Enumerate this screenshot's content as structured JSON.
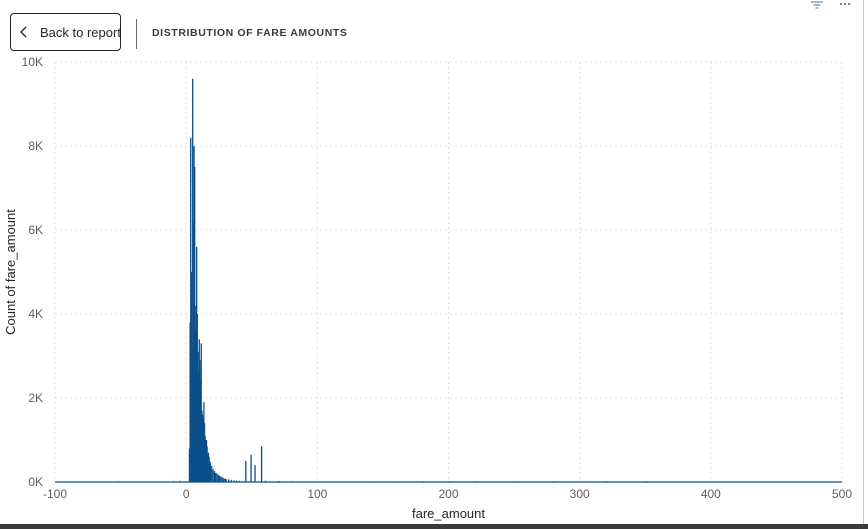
{
  "header": {
    "back_label": "Back to report",
    "title": "DISTRIBUTION OF FARE AMOUNTS"
  },
  "icons": {
    "back": "chevron-left-icon",
    "filter": "filter-icon",
    "more": "more-options-icon"
  },
  "colors": {
    "bar": "#0b4f8a",
    "grid": "#e1e1e1"
  },
  "chart_data": {
    "type": "bar",
    "title": "DISTRIBUTION OF FARE AMOUNTS",
    "xlabel": "fare_amount",
    "ylabel": "Count of fare_amount",
    "xlim": [
      -100,
      500
    ],
    "ylim": [
      0,
      10000
    ],
    "x_ticks": [
      "-100",
      "0",
      "100",
      "200",
      "300",
      "400",
      "500"
    ],
    "y_ticks": [
      "0K",
      "2K",
      "4K",
      "6K",
      "8K",
      "10K"
    ],
    "grid": true,
    "legend": "none",
    "x": [
      -52,
      -30,
      -10,
      -5,
      2,
      2.5,
      3,
      3.5,
      4,
      4.5,
      5,
      5.5,
      6,
      6.5,
      7,
      7.5,
      8,
      8.5,
      9,
      9.5,
      10,
      10.5,
      11,
      11.5,
      12,
      12.5,
      13,
      13.5,
      14,
      14.5,
      15,
      15.5,
      16,
      16.5,
      17,
      17.5,
      18,
      19,
      20,
      21,
      22,
      23,
      24,
      25,
      26,
      27,
      28,
      29,
      30,
      32,
      34,
      36,
      38,
      40,
      45,
      49,
      52,
      57,
      60,
      70,
      80,
      90,
      100,
      120,
      140,
      160,
      180,
      200,
      220,
      250,
      280,
      320,
      350
    ],
    "y": [
      20,
      15,
      20,
      30,
      800,
      3800,
      8200,
      5000,
      3200,
      9600,
      6200,
      8000,
      7500,
      3600,
      4200,
      5600,
      4000,
      3100,
      2600,
      3400,
      2900,
      2400,
      3300,
      1700,
      1600,
      1500,
      1900,
      1400,
      1100,
      1000,
      1000,
      850,
      650,
      700,
      600,
      500,
      450,
      380,
      300,
      260,
      220,
      200,
      170,
      150,
      130,
      110,
      90,
      80,
      70,
      60,
      50,
      40,
      35,
      30,
      500,
      650,
      400,
      850,
      30,
      25,
      20,
      15,
      10,
      10,
      8,
      8,
      6,
      6,
      5,
      5,
      4,
      4,
      3
    ]
  }
}
